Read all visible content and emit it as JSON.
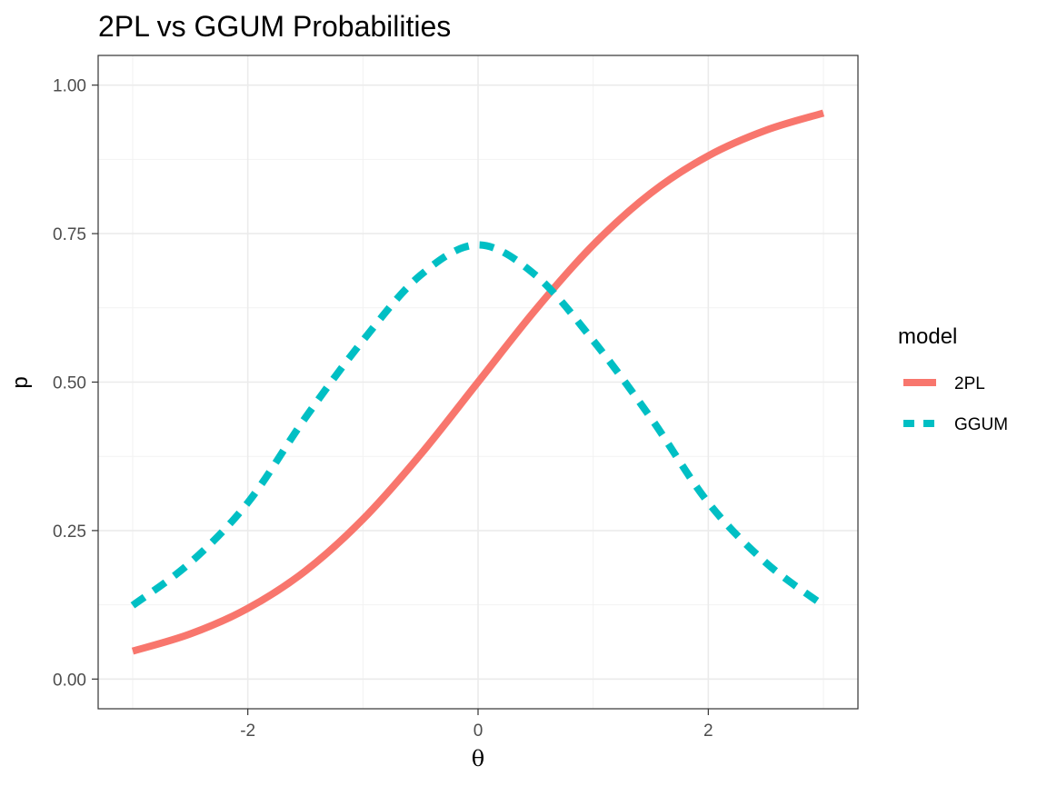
{
  "chart_data": {
    "type": "line",
    "title": "2PL vs GGUM Probabilities",
    "xlabel": "θ",
    "ylabel": "p",
    "xlim": [
      -3.3,
      3.3
    ],
    "ylim": [
      -0.05,
      1.05
    ],
    "x_ticks": [
      -2,
      0,
      2
    ],
    "x_tick_labels": [
      "-2",
      "0",
      "2"
    ],
    "y_ticks": [
      0,
      0.25,
      0.5,
      0.75,
      1
    ],
    "y_tick_labels": [
      "0.00",
      "0.25",
      "0.50",
      "0.75",
      "1.00"
    ],
    "grid": true,
    "legend": {
      "title": "model",
      "placement": "right",
      "entries": [
        {
          "label": "2PL",
          "color": "#F8766D",
          "style": "solid"
        },
        {
          "label": "GGUM",
          "color": "#00BFC4",
          "style": "dashed"
        }
      ]
    },
    "series": [
      {
        "name": "2PL",
        "color": "#F8766D",
        "style": "solid",
        "x": [
          -3,
          -2.5,
          -2,
          -1.5,
          -1,
          -0.5,
          0,
          0.5,
          1,
          1.5,
          2,
          2.5,
          3
        ],
        "y": [
          0.047,
          0.076,
          0.119,
          0.182,
          0.269,
          0.378,
          0.5,
          0.622,
          0.731,
          0.818,
          0.881,
          0.924,
          0.953
        ]
      },
      {
        "name": "GGUM",
        "color": "#00BFC4",
        "style": "dashed",
        "x": [
          -3,
          -2.5,
          -2,
          -1.5,
          -1,
          -0.5,
          0,
          0.5,
          1,
          1.5,
          2,
          2.5,
          3
        ],
        "y": [
          0.124,
          0.196,
          0.297,
          0.44,
          0.57,
          0.68,
          0.731,
          0.68,
          0.57,
          0.44,
          0.297,
          0.196,
          0.124
        ]
      }
    ]
  }
}
